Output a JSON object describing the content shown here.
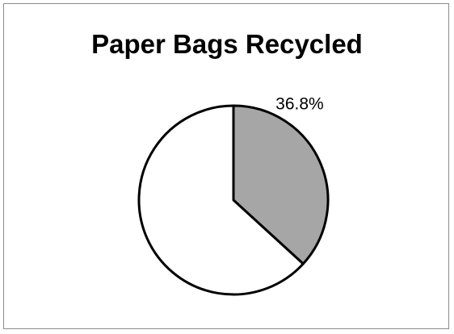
{
  "chart_data": {
    "type": "pie",
    "title": "Paper Bags Recycled",
    "slices": [
      {
        "value": 36.8,
        "label": "36.8%",
        "color": "#a6a6a6"
      },
      {
        "value": 63.2,
        "label": "",
        "color": "#ffffff"
      }
    ],
    "start_angle_deg": 0,
    "direction": "clockwise",
    "legend": "none"
  }
}
